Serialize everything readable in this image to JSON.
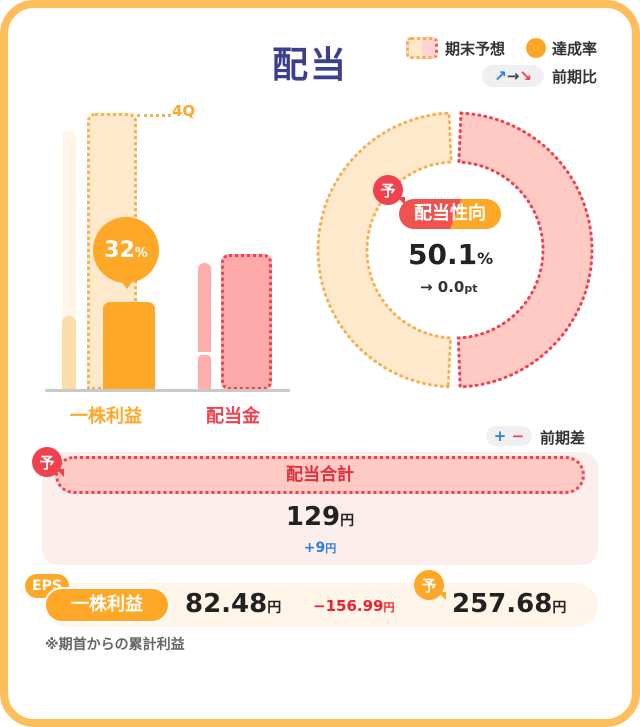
{
  "title": "配当",
  "legend": {
    "forecast": "期末予想",
    "achievement": "達成率",
    "yoy": "前期比"
  },
  "bars": {
    "quarter_label": "4Q",
    "achievement_rate": "32",
    "achievement_unit": "%",
    "eps_label": "一株利益",
    "dividend_label": "配当金",
    "achievement_fraction": 0.32
  },
  "payout": {
    "badge": "予",
    "label": "配当性向",
    "value": "50.1",
    "unit": "%",
    "change": "→ 0.0",
    "change_unit": "pt",
    "ratio_percent": 50.1
  },
  "diff_legend": {
    "plus": "+",
    "minus": "−",
    "label": "前期差"
  },
  "total": {
    "badge": "予",
    "label": "配当合計",
    "value": "129",
    "unit": "円",
    "diff": "+9",
    "diff_unit": "円"
  },
  "eps": {
    "tag": "EPS",
    "label": "一株利益",
    "value": "82.48",
    "unit": "円",
    "diff": "−156.99",
    "diff_unit": "円",
    "badge": "予",
    "forecast": "257.68",
    "forecast_unit": "円"
  },
  "footnote": "※期首からの累計利益",
  "colors": {
    "orange": "#FFA726",
    "pink": "#FFAAAA",
    "red": "#F0424E",
    "blue": "#2a7de1",
    "navy": "#3c3f8e"
  }
}
